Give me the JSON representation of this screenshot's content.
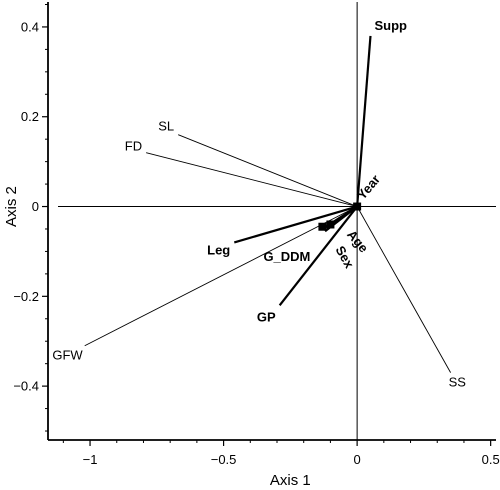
{
  "chart_data": {
    "type": "scatter",
    "title": "",
    "xlabel": "Axis 1",
    "ylabel": "Axis 2",
    "xlim": [
      -1.12,
      0.52
    ],
    "ylim": [
      -0.52,
      0.46
    ],
    "xticks": [
      {
        "value": -1,
        "label": "−1"
      },
      {
        "value": -0.5,
        "label": "−0.5"
      },
      {
        "value": 0,
        "label": "0"
      },
      {
        "value": 0.5,
        "label": "0.5"
      }
    ],
    "yticks": [
      {
        "value": 0.4,
        "label": "0.4"
      },
      {
        "value": 0.2,
        "label": "0.2"
      },
      {
        "value": 0,
        "label": "0"
      },
      {
        "value": -0.2,
        "label": "−0.2"
      },
      {
        "value": -0.4,
        "label": "−0.4"
      }
    ],
    "grid": false,
    "reference_lines": {
      "x": 0,
      "y": 0
    },
    "vectors": [
      {
        "name": "Supp",
        "x": 0.05,
        "y": 0.38,
        "bold": true
      },
      {
        "name": "Year",
        "x": 0.0,
        "y": 0.0,
        "bold": true
      },
      {
        "name": "SL",
        "x": -0.67,
        "y": 0.16,
        "bold": false
      },
      {
        "name": "FD",
        "x": -0.79,
        "y": 0.12,
        "bold": false
      },
      {
        "name": "GFW",
        "x": -1.02,
        "y": -0.31,
        "bold": false
      },
      {
        "name": "Leg",
        "x": -0.46,
        "y": -0.08,
        "bold": true
      },
      {
        "name": "G_DDM",
        "x": -0.13,
        "y": -0.05,
        "bold": true
      },
      {
        "name": "Age",
        "x": -0.1,
        "y": -0.045,
        "bold": true
      },
      {
        "name": "Sex",
        "x": -0.12,
        "y": -0.055,
        "bold": true
      },
      {
        "name": "GP",
        "x": -0.29,
        "y": -0.22,
        "bold": true
      },
      {
        "name": "SS",
        "x": 0.35,
        "y": -0.37,
        "bold": false
      }
    ]
  }
}
